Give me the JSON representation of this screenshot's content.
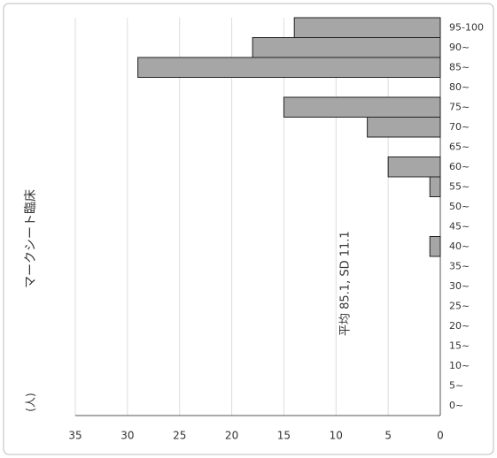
{
  "chart_data": {
    "type": "bar",
    "title": "マークシート臨床",
    "y_label": "(人)",
    "annotation": "平均 85.1, SD 11.1",
    "categories": [
      "0~",
      "5~",
      "10~",
      "15~",
      "20~",
      "25~",
      "30~",
      "35~",
      "40~",
      "45~",
      "50~",
      "55~",
      "60~",
      "65~",
      "70~",
      "75~",
      "80~",
      "85~",
      "90~",
      "95-100"
    ],
    "values": [
      0,
      0,
      0,
      0,
      0,
      0,
      0,
      0,
      1,
      0,
      0,
      1,
      5,
      0,
      7,
      15,
      0,
      29,
      18,
      14
    ],
    "color": "#a6a6a6",
    "ylim": [
      0,
      35
    ],
    "yticks": [
      0,
      5,
      10,
      15,
      20,
      25,
      30,
      35
    ],
    "grid": true
  }
}
